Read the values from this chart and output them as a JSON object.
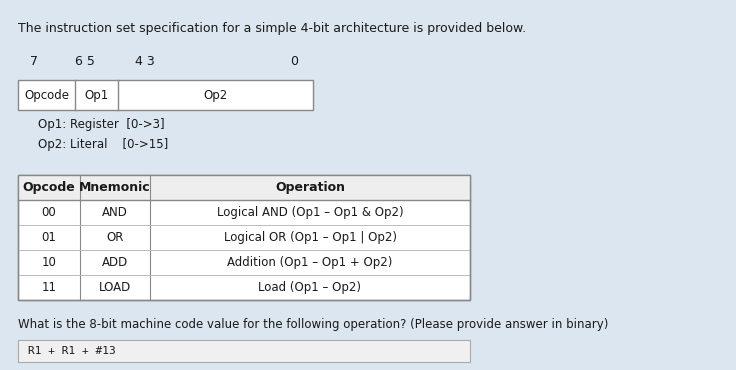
{
  "bg_color": "#dce6f0",
  "white_box_color": "#ffffff",
  "text_color": "#1a1a1a",
  "gray_color": "#888888",
  "title_text": "The instruction set specification for a simple 4-bit architecture is provided below.",
  "bit_labels": [
    "7",
    "6 5",
    "4 3",
    "0"
  ],
  "opcode_label": "Opcode",
  "op1_label": "Op1",
  "op2_label": "Op2",
  "op1_note": "Op1: Register  [0->3]",
  "op2_note": "Op2: Literal    [0->15]",
  "table_headers": [
    "Opcode",
    "Mnemonic",
    "Operation"
  ],
  "table_rows": [
    [
      "00",
      "AND",
      "Logical AND (Op1 – Op1 & Op2)"
    ],
    [
      "01",
      "OR",
      "Logical OR (Op1 – Op1 | Op2)"
    ],
    [
      "10",
      "ADD",
      "Addition (Op1 – Op1 + Op2)"
    ],
    [
      "11",
      "LOAD",
      "Load (Op1 – Op2)"
    ]
  ],
  "question_text": "What is the 8-bit machine code value for the following operation? (Please provide answer in binary)",
  "answer_label": "R1 + R1 + #13",
  "fig_w": 7.36,
  "fig_h": 3.7,
  "dpi": 100
}
